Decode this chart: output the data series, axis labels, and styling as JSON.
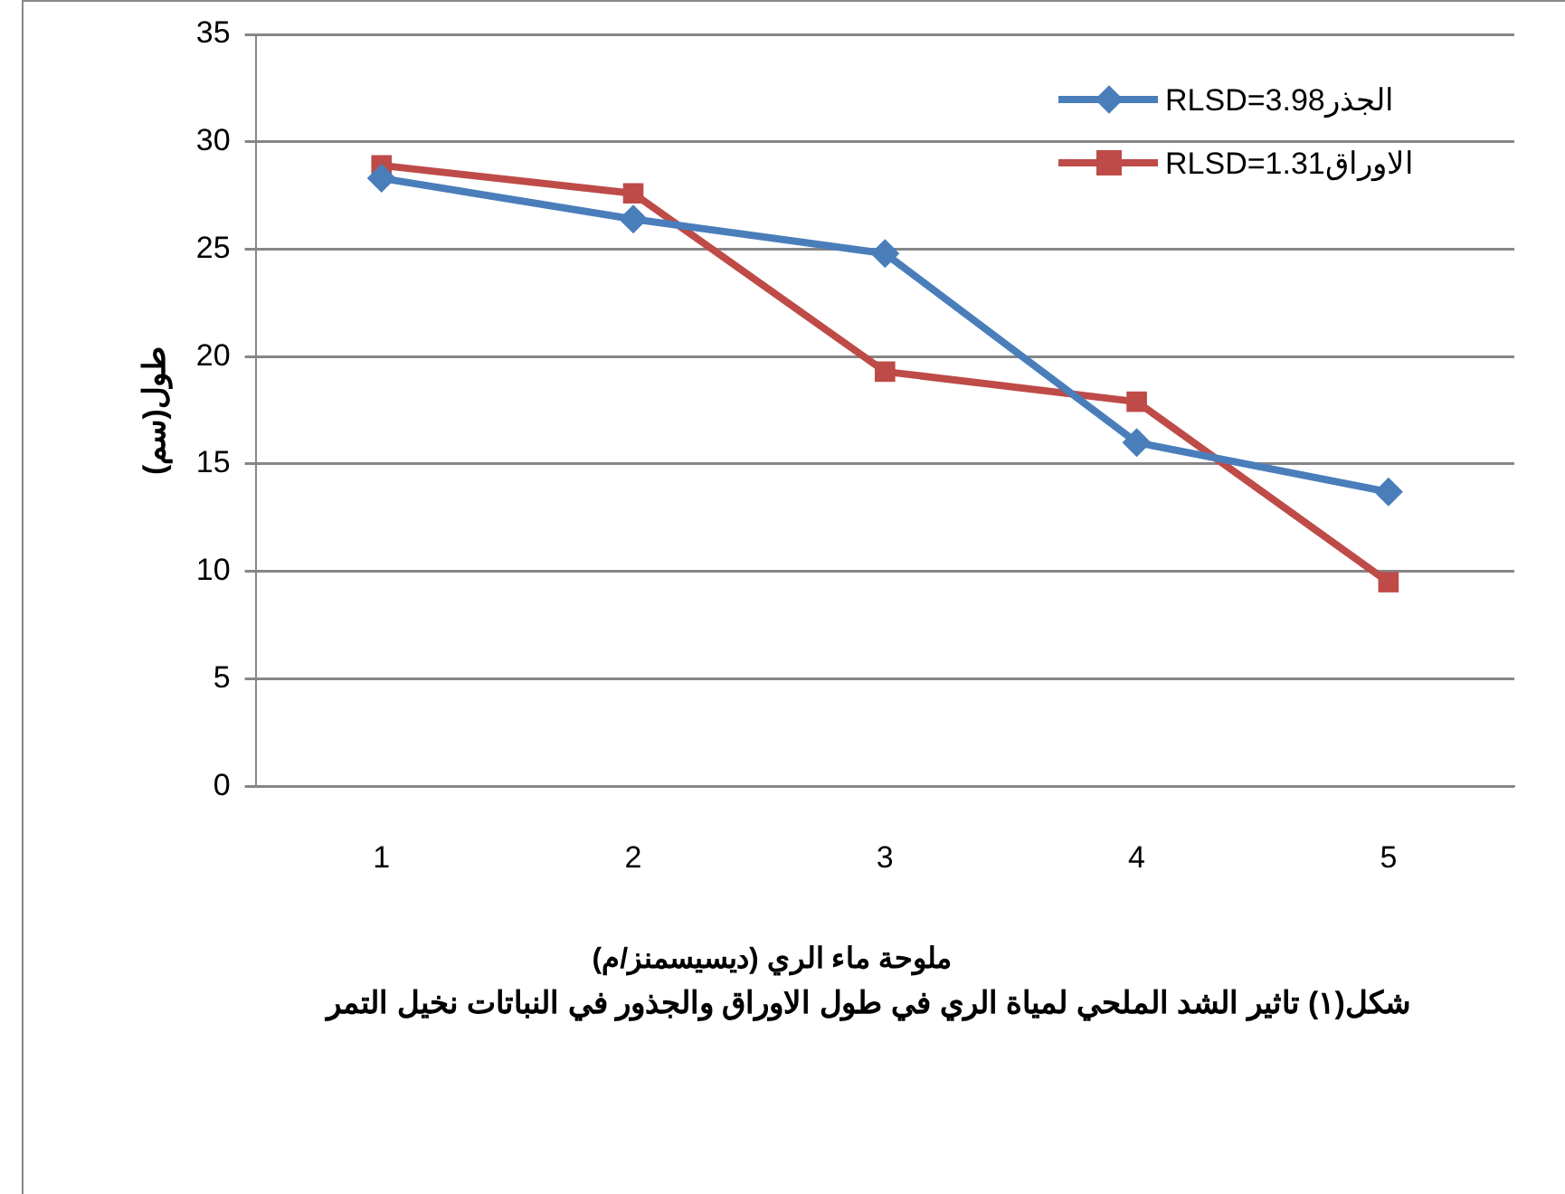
{
  "chart_data": {
    "type": "line",
    "title": "شكل(١) تاثير الشد الملحي لمياة الري في طول الاوراق والجذور في النباتات نخيل التمر",
    "xlabel": "ملوحة ماء الري (ديسيسمنز/م)",
    "ylabel": "طول(سم)",
    "categories": [
      "1",
      "2",
      "3",
      "4",
      "5"
    ],
    "series": [
      {
        "name": "RLSD=3.98الجذر",
        "color": "#4a7ebb",
        "marker": "diamond",
        "values": [
          28.3,
          26.4,
          24.8,
          16.0,
          13.7
        ]
      },
      {
        "name": "RLSD=1.31الاوراق",
        "color": "#be4b48",
        "marker": "square",
        "values": [
          28.9,
          27.6,
          19.3,
          17.9,
          9.5
        ]
      }
    ],
    "ylim": [
      0,
      35
    ],
    "yticks": [
      0,
      5,
      10,
      15,
      20,
      25,
      30,
      35
    ],
    "grid": "y",
    "legend": "top right"
  }
}
